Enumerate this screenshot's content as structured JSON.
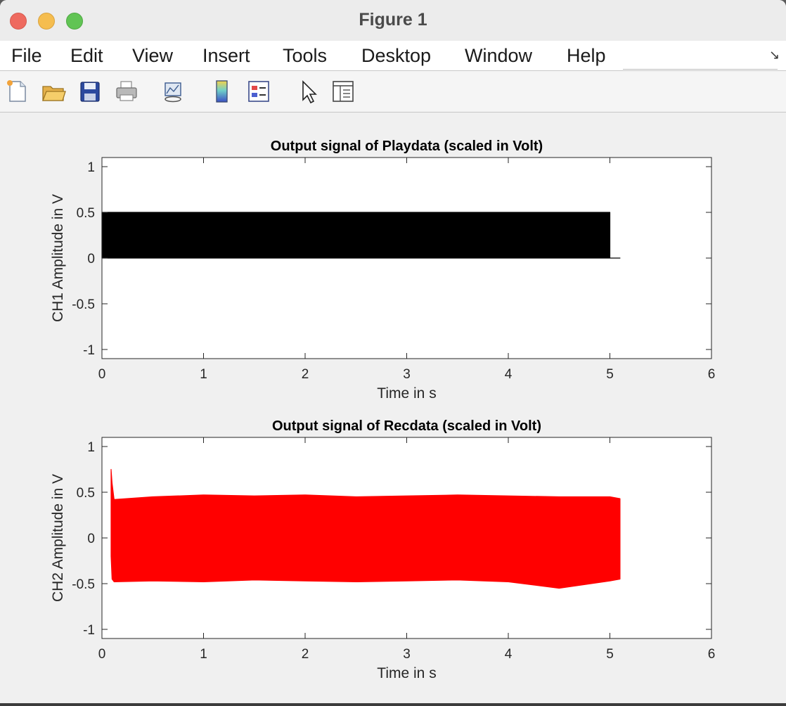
{
  "window": {
    "title": "Figure 1"
  },
  "menu": {
    "items": [
      "File",
      "Edit",
      "View",
      "Insert",
      "Tools",
      "Desktop",
      "Window",
      "Help"
    ]
  },
  "toolbar": {
    "icons": [
      "new-figure-icon",
      "open-file-icon",
      "save-icon",
      "print-icon",
      "link-plot-icon",
      "insert-colorbar-icon",
      "insert-legend-icon",
      "edit-plot-cursor-icon",
      "property-inspector-icon"
    ]
  },
  "colors": {
    "series1": "#000000",
    "series2": "#ff0000",
    "figure_bg": "#f0f0f0"
  },
  "chart_data": [
    {
      "type": "line",
      "title": "Output signal of Playdata (scaled in Volt)",
      "xlabel": "Time in s",
      "ylabel": "CH1 Amplitude in V",
      "xlim": [
        0,
        6
      ],
      "ylim": [
        -1.1,
        1.1
      ],
      "xticks": [
        0,
        1,
        2,
        3,
        4,
        5,
        6
      ],
      "yticks": [
        -1,
        -0.5,
        0,
        0.5,
        1
      ],
      "ytick_labels": [
        "-1",
        "-0.5",
        "0",
        "0.5",
        "1"
      ],
      "grid": false,
      "series": [
        {
          "color": "#000000",
          "x": [
            0,
            5.0,
            5.0,
            5.1
          ],
          "y_max": [
            0.5,
            0.5,
            0,
            0
          ],
          "y_min": [
            0,
            0,
            0,
            0
          ]
        }
      ]
    },
    {
      "type": "line",
      "title": "Output signal of Recdata (scaled in Volt)",
      "xlabel": "Time in s",
      "ylabel": "CH2 Amplitude in V",
      "xlim": [
        0,
        6
      ],
      "ylim": [
        -1.1,
        1.1
      ],
      "xticks": [
        0,
        1,
        2,
        3,
        4,
        5,
        6
      ],
      "yticks": [
        -1,
        -0.5,
        0,
        0.5,
        1
      ],
      "ytick_labels": [
        "-1",
        "-0.5",
        "0",
        "0.5",
        "1"
      ],
      "grid": false,
      "series": [
        {
          "color": "#ff0000",
          "x": [
            0.09,
            0.1,
            0.12,
            0.5,
            1,
            1.5,
            2,
            2.5,
            3,
            3.5,
            4,
            4.5,
            5,
            5.1
          ],
          "y_max": [
            0.75,
            0.6,
            0.42,
            0.45,
            0.47,
            0.46,
            0.47,
            0.45,
            0.46,
            0.47,
            0.46,
            0.45,
            0.45,
            0.43
          ],
          "y_min": [
            -0.2,
            -0.45,
            -0.48,
            -0.47,
            -0.48,
            -0.46,
            -0.47,
            -0.48,
            -0.47,
            -0.46,
            -0.48,
            -0.55,
            -0.47,
            -0.45
          ]
        }
      ]
    }
  ]
}
